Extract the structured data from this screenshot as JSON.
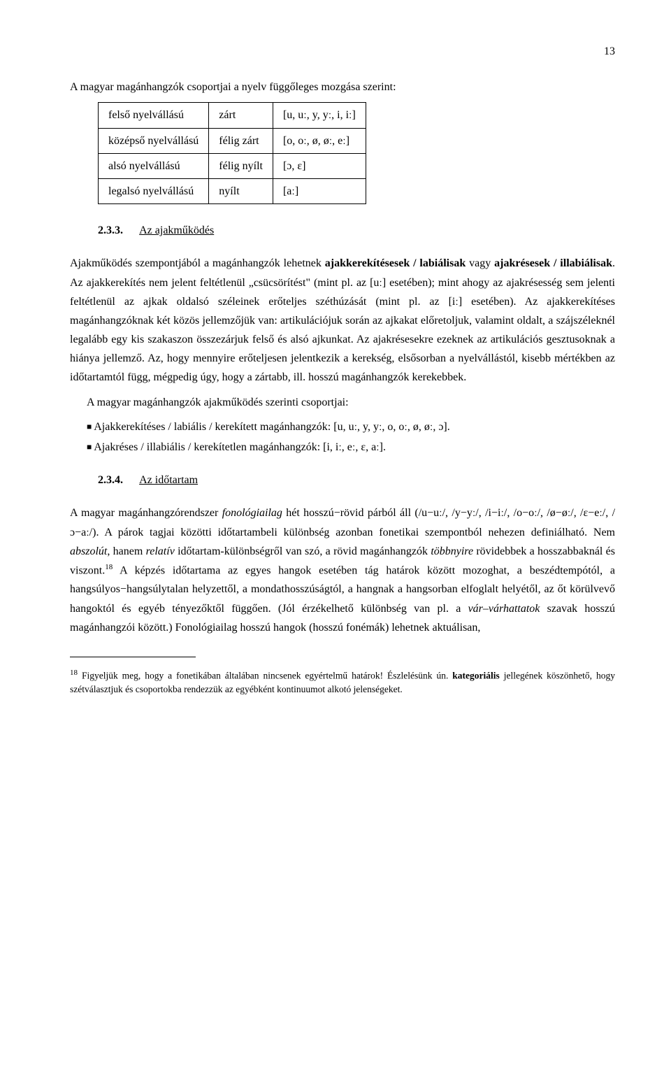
{
  "page_number": "13",
  "intro_text": "A magyar magánhangzók csoportjai a nyelv függőleges mozgása szerint:",
  "vowel_table": {
    "rows": [
      [
        "felső nyelvállású",
        "zárt",
        "[u, uː, y, yː, i, iː]"
      ],
      [
        "középső nyelvállású",
        "félig zárt",
        "[o, oː, ø, øː, eː]"
      ],
      [
        "alsó nyelvállású",
        "félig nyílt",
        "[ɔ, ɛ]"
      ],
      [
        "legalsó nyelvállású",
        "nyílt",
        "[aː]"
      ]
    ]
  },
  "section_233": {
    "num": "2.3.3.",
    "title": "Az ajakműködés"
  },
  "para_233_lead": "Ajakműködés szempontjából a magánhangzók lehetnek ",
  "para_233_bold1": "ajakkerekítésesek / labiálisak",
  "para_233_mid": " vagy ",
  "para_233_bold2": "ajakrésesek / illabiálisak",
  "para_233_rest": ". Az ajakkerekítés nem jelent feltétlenül „csücsörítést\" (mint pl. az [uː] esetében); mint ahogy az ajakrésesség sem jelenti feltétlenül az ajkak oldalsó széleinek erőteljes széthúzását (mint pl. az [iː] esetében). Az ajakkerekítéses magánhangzóknak két közös jellemzőjük van: artikulációjuk során az ajkakat előretoljuk, valamint oldalt, a szájszéleknél legalább egy kis szakaszon összezárjuk felső és alsó ajkunkat. Az ajakrésesekre ezeknek az artikulációs gesztusoknak a hiánya jellemző. Az, hogy mennyire erőteljesen jelentkezik a kerekség, elsősorban a nyelvállástól, kisebb mértékben az időtartamtól függ, mégpedig úgy, hogy a zártabb, ill. hosszú magánhangzók kerekebbek.",
  "para_233_list_intro": "A magyar magánhangzók ajakműködés szerinti csoportjai:",
  "bullets": [
    "Ajakkerekítéses / labiális / kerekített magánhangzók: [u, uː, y, yː, o, oː, ø, øː, ɔ].",
    "Ajakréses / illabiális / kerekítetlen magánhangzók: [i, iː, eː, ɛ, aː]."
  ],
  "section_234": {
    "num": "2.3.4.",
    "title": "Az időtartam"
  },
  "para_234_a": "A magyar magánhangzórendszer ",
  "para_234_em1": "fonológiailag",
  "para_234_b": " hét hosszú−rövid párból áll (/u−uː/, /y−yː/, /i−iː/, /o−oː/, /ø−øː/, /ɛ−eː/, /ɔ−aː/).  A párok tagjai közötti időtartambeli különbség azonban fonetikai szempontból nehezen definiálható. Nem ",
  "para_234_em2": "abszolút",
  "para_234_c": ", hanem ",
  "para_234_em3": "relatív",
  "para_234_d": " időtartam-különbségről van szó, a rövid magánhangzók ",
  "para_234_em4": "többnyire",
  "para_234_e": " rövidebbek a hosszabbaknál és viszont.",
  "para_234_fnref": "18",
  "para_234_f": " A képzés időtartama az egyes hangok esetében tág határok között mozoghat, a beszédtempótól, a hangsúlyos−hangsúlytalan helyzettől, a mondathosszúságtól, a hangnak a hangsorban elfoglalt helyétől, az őt körülvevő hangoktól és egyéb tényezőktől függően. (Jól érzékelhető különbség van pl. a ",
  "para_234_em5": "vár–várhattatok",
  "para_234_g": " szavak hosszú magánhangzói között.) Fonológiailag hosszú hangok (hosszú fonémák) lehetnek aktuálisan,",
  "footnote": {
    "num": "18",
    "a": " Figyeljük meg, hogy a fonetikában általában nincsenek egyértelmű határok! Észlelésünk ún. ",
    "b": "kategoriális",
    "c": " jellegének köszönhető, hogy szétválasztjuk és csoportokba rendezzük az egyébként kontinuumot alkotó jelenségeket."
  }
}
